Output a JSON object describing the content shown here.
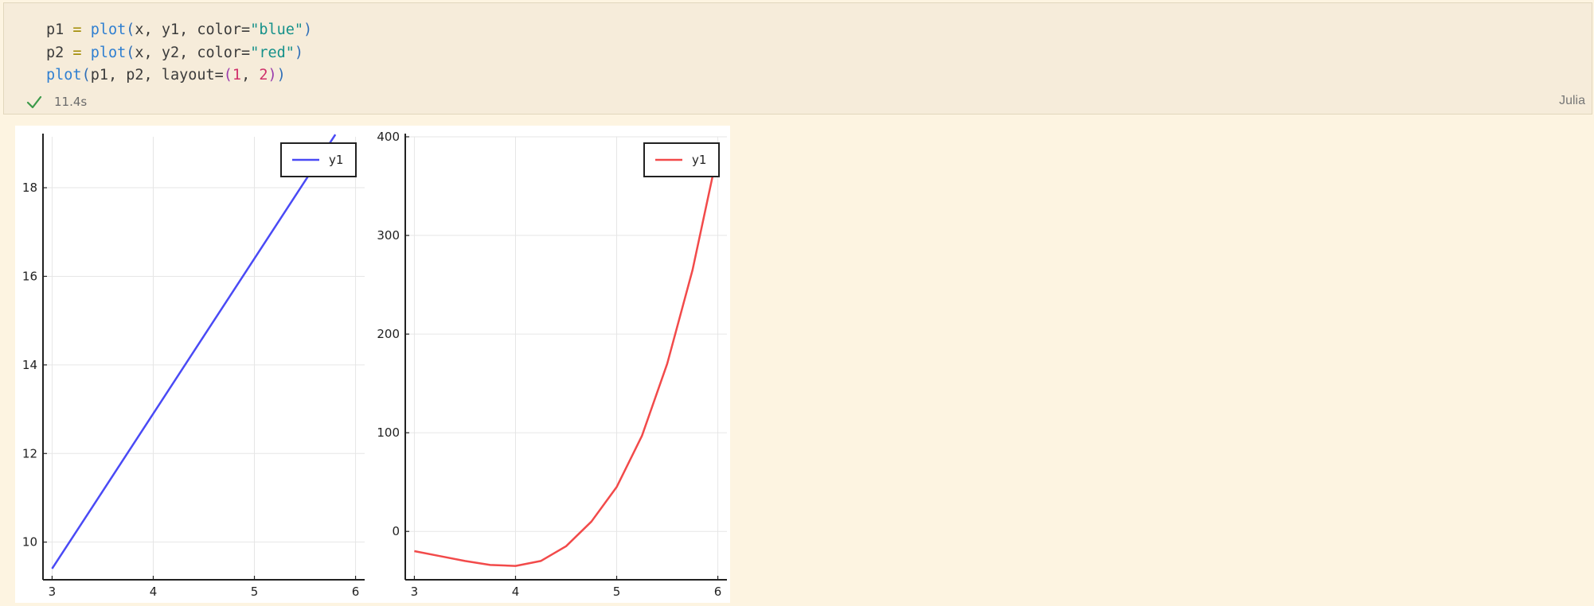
{
  "cell": {
    "code_lines": [
      [
        {
          "t": "p1",
          "k": "var"
        },
        {
          "t": " ",
          "k": "var"
        },
        {
          "t": "=",
          "k": "op"
        },
        {
          "t": " ",
          "k": "var"
        },
        {
          "t": "plot",
          "k": "fn"
        },
        {
          "t": "(",
          "k": "p1"
        },
        {
          "t": "x, y1, color=",
          "k": "var"
        },
        {
          "t": "\"blue\"",
          "k": "str"
        },
        {
          "t": ")",
          "k": "p1"
        }
      ],
      [
        {
          "t": "p2",
          "k": "var"
        },
        {
          "t": " ",
          "k": "var"
        },
        {
          "t": "=",
          "k": "op"
        },
        {
          "t": " ",
          "k": "var"
        },
        {
          "t": "plot",
          "k": "fn"
        },
        {
          "t": "(",
          "k": "p1"
        },
        {
          "t": "x, y2, color=",
          "k": "var"
        },
        {
          "t": "\"red\"",
          "k": "str"
        },
        {
          "t": ")",
          "k": "p1"
        }
      ],
      [
        {
          "t": "plot",
          "k": "fn"
        },
        {
          "t": "(",
          "k": "p1"
        },
        {
          "t": "p1, p2, layout=",
          "k": "var"
        },
        {
          "t": "(",
          "k": "p2"
        },
        {
          "t": "1",
          "k": "num"
        },
        {
          "t": ", ",
          "k": "var"
        },
        {
          "t": "2",
          "k": "num"
        },
        {
          "t": ")",
          "k": "p2"
        },
        {
          "t": ")",
          "k": "p1"
        }
      ]
    ],
    "status_icon": "check-icon",
    "exec_time": "11.4s",
    "language": "Julia"
  },
  "chart_data": [
    {
      "type": "line",
      "series": [
        {
          "name": "y1",
          "color": "#4a4af5",
          "x": [
            3.0,
            3.5,
            4.0,
            4.5,
            5.0,
            5.5,
            5.8
          ],
          "values": [
            9.4,
            11.15,
            12.9,
            14.65,
            16.4,
            18.15,
            19.2
          ]
        }
      ],
      "x_ticks": [
        3,
        4,
        5,
        6
      ],
      "y_ticks": [
        10,
        12,
        14,
        16,
        18
      ],
      "xlim": [
        2.91,
        6.09
      ],
      "ylim": [
        9.15,
        19.15
      ],
      "grid": true,
      "legend": "top-right"
    },
    {
      "type": "line",
      "series": [
        {
          "name": "y1",
          "color": "#f24a4a",
          "x": [
            3.0,
            3.25,
            3.5,
            3.75,
            4.0,
            4.25,
            4.5,
            4.75,
            5.0,
            5.25,
            5.5,
            5.75,
            6.0
          ],
          "values": [
            -20,
            -25,
            -30,
            -34,
            -35,
            -30,
            -15,
            10,
            45,
            97,
            170,
            265,
            385
          ]
        }
      ],
      "x_ticks": [
        3,
        4,
        5,
        6
      ],
      "y_ticks": [
        0,
        100,
        200,
        300,
        400
      ],
      "xlim": [
        2.91,
        6.09
      ],
      "ylim": [
        -49,
        400
      ],
      "grid": true,
      "legend": "top-right"
    }
  ]
}
